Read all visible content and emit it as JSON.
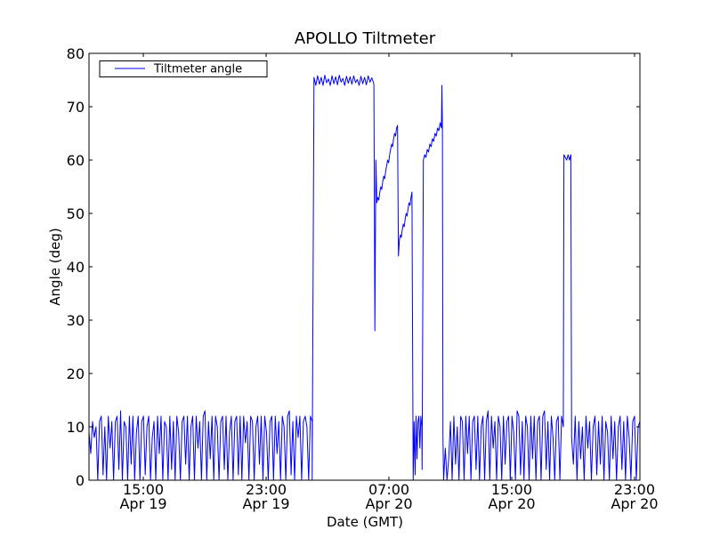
{
  "chart_data": {
    "type": "line",
    "title": "APOLLO Tiltmeter",
    "xlabel": "Date (GMT)",
    "ylabel": "Angle (deg)",
    "x_units": "hours since Apr 19 00:00 GMT",
    "xlim": [
      11.46,
      47.35
    ],
    "ylim": [
      0,
      80
    ],
    "yticks": [
      0,
      10,
      20,
      30,
      40,
      50,
      60,
      70,
      80
    ],
    "xticks": [
      {
        "value": 15,
        "time": "15:00",
        "date": "Apr 19"
      },
      {
        "value": 23,
        "time": "23:00",
        "date": "Apr 19"
      },
      {
        "value": 31,
        "time": "07:00",
        "date": "Apr 20"
      },
      {
        "value": 39,
        "time": "15:00",
        "date": "Apr 20"
      },
      {
        "value": 47,
        "time": "23:00",
        "date": "Apr 20"
      }
    ],
    "grid": false,
    "legend": {
      "position": "top-left",
      "entries": [
        "Tiltmeter angle"
      ]
    },
    "color": "#0000ff",
    "series": [
      {
        "name": "Tiltmeter angle",
        "segments": [
          {
            "start": 11.46,
            "end": 26.0,
            "values": [
              9,
              5,
              11,
              8,
              10,
              0,
              11,
              12,
              1,
              10,
              0,
              12,
              6,
              11,
              0,
              11,
              12,
              2,
              13,
              0,
              11,
              10,
              0,
              12,
              3,
              12,
              0,
              9,
              12,
              0,
              11,
              12,
              1,
              10,
              12,
              0,
              8,
              11,
              0,
              12,
              5,
              12,
              0,
              11,
              10,
              0,
              12,
              2,
              11,
              0,
              12,
              9,
              0,
              11,
              12,
              3,
              12,
              0,
              10,
              12,
              0,
              12,
              6,
              11,
              0,
              12,
              13,
              0,
              11,
              4,
              12,
              0,
              12,
              10,
              0,
              11,
              12,
              2,
              12,
              0,
              9,
              12,
              0,
              11,
              12,
              1,
              12,
              0,
              12,
              7,
              11,
              0,
              12,
              11,
              0,
              10,
              12,
              3,
              12,
              0,
              12,
              9,
              0,
              11,
              12,
              0,
              12,
              5,
              11,
              0,
              12,
              10,
              0,
              12,
              13,
              1,
              11,
              0,
              12,
              8,
              12,
              0,
              11,
              12,
              10,
              0,
              12,
              11
            ]
          },
          {
            "start": 26.0,
            "end": 30.0,
            "values": [
              0,
              75.5,
              74,
              75.8,
              74.2,
              75.5,
              74,
              75.9,
              74.5,
              75.2,
              74,
              75.8,
              74.3,
              75.6,
              74.1,
              75.9,
              74.6,
              75.3,
              74,
              75.7,
              74.4,
              75.6,
              74.2,
              75.8,
              74.5,
              75.1,
              74,
              75.7,
              74.3,
              75.5,
              74.1,
              75.8,
              74.6,
              75.4,
              74.5
            ]
          },
          {
            "start": 30.02,
            "end": 31.56,
            "values": [
              74,
              28,
              60,
              52,
              53,
              52.5,
              54,
              55,
              54.5,
              56,
              57,
              56.5,
              58,
              59,
              60,
              59.5,
              61,
              62,
              63,
              62.5,
              64,
              65,
              64.5,
              66,
              66.5
            ]
          },
          {
            "start": 31.62,
            "end": 32.5,
            "values": [
              42,
              45,
              46,
              45.5,
              47,
              48,
              47.5,
              49,
              50,
              49.5,
              51,
              52,
              51.5,
              53,
              54
            ]
          },
          {
            "start": 32.58,
            "end": 33.14,
            "values": [
              0,
              11,
              1,
              12,
              4,
              11,
              12,
              6,
              12,
              10
            ]
          },
          {
            "start": 33.16,
            "end": 34.42,
            "values": [
              2,
              60,
              61,
              60.5,
              62,
              61.5,
              63,
              62.5,
              64,
              63.5,
              65,
              64.5,
              66,
              65.5,
              67,
              66
            ]
          },
          {
            "start": 34.45,
            "end": 34.52,
            "values": [
              74,
              66,
              8
            ]
          },
          {
            "start": 34.56,
            "end": 42.36,
            "values": [
              0,
              6,
              0,
              4,
              11,
              0,
              12,
              3,
              10,
              0,
              12,
              11,
              0,
              12,
              5,
              12,
              0,
              11,
              12,
              2,
              12,
              0,
              10,
              12,
              0,
              11,
              13,
              0,
              12,
              6,
              11,
              0,
              12,
              10,
              0,
              12,
              3,
              11,
              12,
              0,
              12,
              9,
              0,
              13,
              12,
              1,
              11,
              0,
              12,
              10,
              0,
              12,
              4,
              12,
              0,
              11,
              12,
              0,
              12,
              13,
              2,
              11,
              0,
              12,
              8,
              0,
              11,
              12,
              0,
              12,
              10
            ]
          },
          {
            "start": 42.4,
            "end": 42.85,
            "values": [
              61,
              60.5,
              60,
              61,
              60,
              61
            ]
          },
          {
            "start": 42.9,
            "end": 47.35,
            "values": [
              8,
              3,
              12,
              0,
              11,
              4,
              10,
              0,
              12,
              6,
              11,
              0,
              10,
              12,
              1,
              11,
              3,
              12,
              0,
              11,
              9,
              0,
              12,
              4,
              11,
              0,
              10,
              12,
              2,
              11,
              0,
              12,
              8,
              0,
              11,
              12,
              0,
              10,
              11
            ]
          }
        ]
      }
    ]
  }
}
